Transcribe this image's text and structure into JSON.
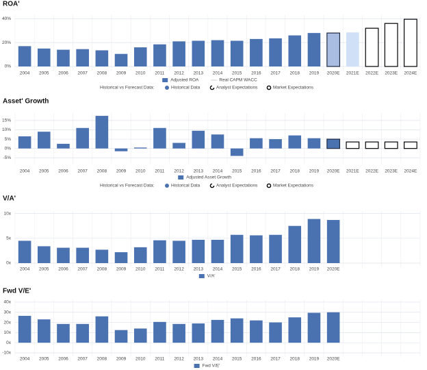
{
  "chart_data": [
    {
      "type": "bar",
      "title": "ROA'",
      "categories": [
        "2004",
        "2005",
        "2006",
        "2007",
        "2008",
        "2009",
        "2010",
        "2011",
        "2012",
        "2013",
        "2014",
        "2015",
        "2016",
        "2017",
        "2018",
        "2019",
        "2020E",
        "2021E",
        "2022E",
        "2023E",
        "2024E"
      ],
      "values": [
        17,
        15,
        14,
        14.5,
        13.5,
        10.5,
        16,
        18.5,
        21,
        21.5,
        22,
        21.5,
        23,
        23.5,
        26,
        28,
        28,
        28.5,
        32,
        36,
        39.5
      ],
      "colors": [
        "#4a72b0",
        "#4a72b0",
        "#4a72b0",
        "#4a72b0",
        "#4a72b0",
        "#4a72b0",
        "#4a72b0",
        "#4a72b0",
        "#4a72b0",
        "#4a72b0",
        "#4a72b0",
        "#4a72b0",
        "#4a72b0",
        "#4a72b0",
        "#4a72b0",
        "#4a72b0",
        "#a9bde3",
        "#cfe0f7",
        "#ffffff",
        "#ffffff",
        "#ffffff"
      ],
      "edge_colors": [
        "#4a72b0",
        "#4a72b0",
        "#4a72b0",
        "#4a72b0",
        "#4a72b0",
        "#4a72b0",
        "#4a72b0",
        "#4a72b0",
        "#4a72b0",
        "#4a72b0",
        "#4a72b0",
        "#4a72b0",
        "#4a72b0",
        "#4a72b0",
        "#4a72b0",
        "#4a72b0",
        "#1f2a44",
        "#cfe0f7",
        "#000000",
        "#000000",
        "#000000"
      ],
      "ylim": [
        0,
        43
      ],
      "yticks": [
        {
          "value": 0,
          "label": "0%"
        },
        {
          "value": 20,
          "label": "20%"
        },
        {
          "value": 40,
          "label": "40%"
        }
      ],
      "grid": true,
      "legend": [
        {
          "label": "Adjusted ROA",
          "color": "#4a72b0"
        },
        {
          "label": "Real CAPM WACC",
          "color": "#cccccc"
        }
      ],
      "forecast_legend": {
        "title": "Historical vs Forecast Data:",
        "items": [
          "Historical Data",
          "Analyst Expectations",
          "Market Expectations"
        ]
      }
    },
    {
      "type": "bar",
      "title": "Asset' Growth",
      "categories": [
        "2004",
        "2005",
        "2006",
        "2007",
        "2008",
        "2009",
        "2010",
        "2011",
        "2012",
        "2013",
        "2014",
        "2015",
        "2016",
        "2017",
        "2018",
        "2019",
        "2020E",
        "2021E",
        "2022E",
        "2023E",
        "2024E"
      ],
      "values": [
        6.5,
        9,
        2.5,
        11,
        17.5,
        -1.5,
        0.5,
        11,
        3,
        9.5,
        7.5,
        -4,
        5.5,
        5,
        7,
        5.5,
        5,
        3.5,
        3.5,
        3.5,
        3.5
      ],
      "colors": [
        "#4a72b0",
        "#4a72b0",
        "#4a72b0",
        "#4a72b0",
        "#4a72b0",
        "#4a72b0",
        "#4a72b0",
        "#4a72b0",
        "#4a72b0",
        "#4a72b0",
        "#4a72b0",
        "#4a72b0",
        "#4a72b0",
        "#4a72b0",
        "#4a72b0",
        "#4a72b0",
        "#4a72b0",
        "#ffffff",
        "#ffffff",
        "#ffffff",
        "#ffffff"
      ],
      "edge_colors": [
        "#4a72b0",
        "#4a72b0",
        "#4a72b0",
        "#4a72b0",
        "#4a72b0",
        "#4a72b0",
        "#4a72b0",
        "#4a72b0",
        "#4a72b0",
        "#4a72b0",
        "#4a72b0",
        "#4a72b0",
        "#4a72b0",
        "#4a72b0",
        "#4a72b0",
        "#4a72b0",
        "#1f2a44",
        "#000000",
        "#000000",
        "#000000",
        "#000000"
      ],
      "ylim": [
        -6,
        19
      ],
      "yticks": [
        {
          "value": -5,
          "label": "-5%"
        },
        {
          "value": 0,
          "label": "0%"
        },
        {
          "value": 5,
          "label": "5%"
        },
        {
          "value": 10,
          "label": "10%"
        },
        {
          "value": 15,
          "label": "15%"
        }
      ],
      "grid": true,
      "legend": [
        {
          "label": "Adjusted Asset Growth",
          "color": "#4a72b0"
        }
      ],
      "forecast_legend": {
        "title": "Historical vs Forecast Data:",
        "items": [
          "Historical Data",
          "Analyst Expectations",
          "Market Expectations"
        ]
      }
    },
    {
      "type": "bar",
      "title": "V/A'",
      "categories": [
        "2004",
        "2005",
        "2006",
        "2007",
        "2008",
        "2009",
        "2010",
        "2011",
        "2012",
        "2013",
        "2014",
        "2015",
        "2016",
        "2017",
        "2018",
        "2019",
        "2020E",
        null,
        null,
        null,
        null
      ],
      "values": [
        4.5,
        3.4,
        3.1,
        3.1,
        2.7,
        2.2,
        3.2,
        4.6,
        4.5,
        4.7,
        4.7,
        5.7,
        5.6,
        5.7,
        7.5,
        8.9,
        8.7,
        null,
        null,
        null,
        null
      ],
      "color": "#4a72b0",
      "ylim": [
        0,
        10.5
      ],
      "yticks": [
        {
          "value": 0,
          "label": "0x"
        },
        {
          "value": 5,
          "label": "5x"
        },
        {
          "value": 10,
          "label": "10x"
        }
      ],
      "grid": true,
      "legend": [
        {
          "label": "V/A'",
          "color": "#4a72b0"
        }
      ]
    },
    {
      "type": "bar",
      "title": "Fwd V/E'",
      "categories": [
        "2004",
        "2005",
        "2006",
        "2007",
        "2008",
        "2009",
        "2010",
        "2011",
        "2012",
        "2013",
        "2014",
        "2015",
        "2016",
        "2017",
        "2018",
        "2019",
        "2020E",
        null,
        null,
        null,
        null
      ],
      "values": [
        26.5,
        23,
        18.5,
        18.5,
        26,
        12.5,
        14,
        20.5,
        18.5,
        19,
        22.5,
        24,
        22,
        20,
        25,
        29.5,
        30,
        null,
        null,
        null,
        null
      ],
      "color": "#4a72b0",
      "ylim": [
        -10,
        42
      ],
      "yticks": [
        {
          "value": -10,
          "label": "-10x"
        },
        {
          "value": 0,
          "label": "0x"
        },
        {
          "value": 10,
          "label": "10x"
        },
        {
          "value": 20,
          "label": "20x"
        },
        {
          "value": 30,
          "label": "30x"
        },
        {
          "value": 40,
          "label": "40x"
        }
      ],
      "grid": true,
      "legend": [
        {
          "label": "Fwd V/E'",
          "color": "#4a72b0"
        }
      ]
    }
  ]
}
